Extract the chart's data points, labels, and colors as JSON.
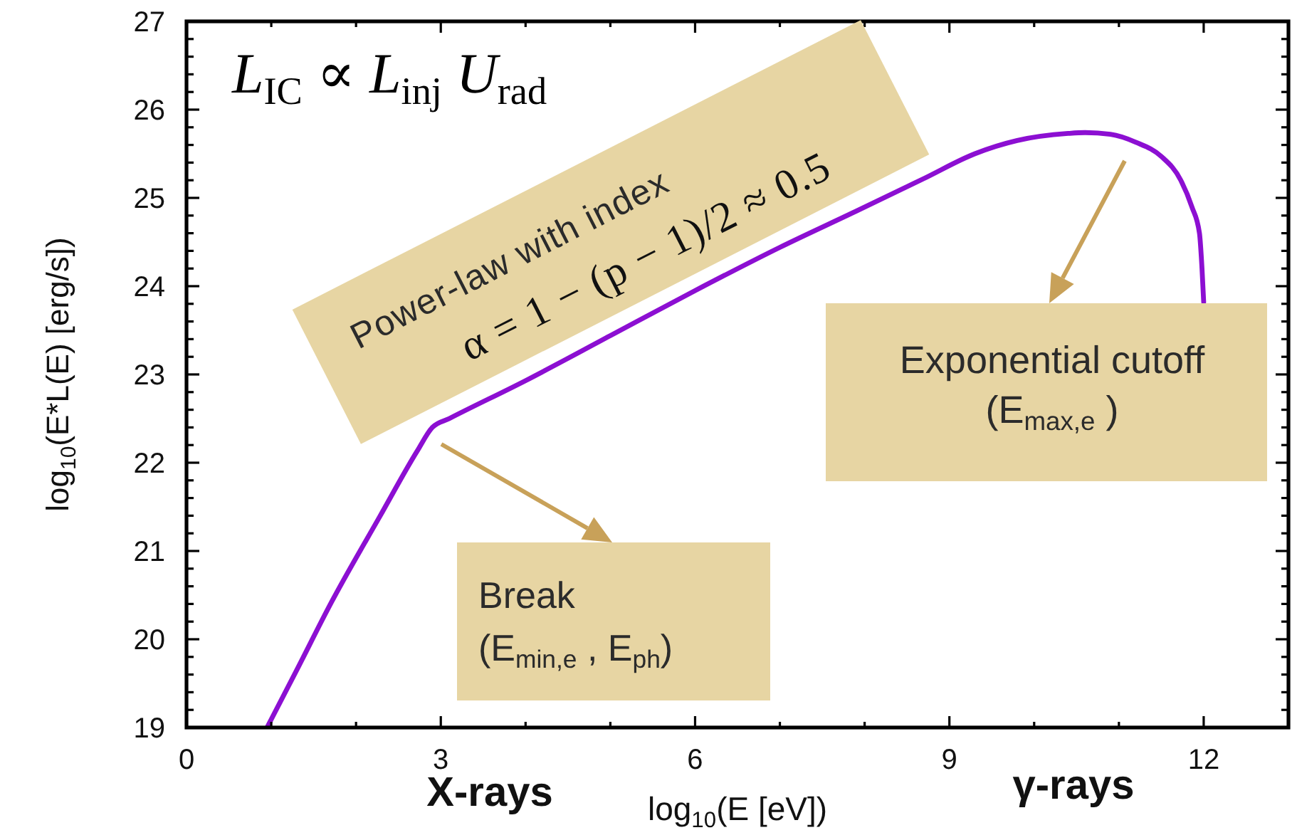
{
  "chart_data": {
    "type": "line",
    "xlabel": "log$_{10}$(E [eV])",
    "ylabel": "log$_{10}$(E*L(E) [erg/s])",
    "x": [
      0.95,
      1.3,
      1.71,
      2.28,
      2.72,
      2.9,
      3.1,
      4,
      5,
      6,
      7,
      7.9,
      8.7,
      9.3,
      9.8,
      10.4,
      10.6,
      10.9,
      11.2,
      11.5,
      11.73,
      11.86,
      11.95,
      11.98,
      12.0
    ],
    "series": [
      {
        "color": "#8c0fd2",
        "values": [
          19.0,
          19.65,
          20.42,
          21.39,
          22.13,
          22.4,
          22.5,
          22.93,
          23.44,
          23.95,
          24.44,
          24.85,
          25.22,
          25.5,
          25.65,
          25.73,
          25.74,
          25.72,
          25.63,
          25.47,
          25.2,
          24.9,
          24.6,
          24.2,
          23.82
        ]
      }
    ],
    "xlim": [
      0,
      13
    ],
    "ylim": [
      19,
      27
    ],
    "xticks": [
      0,
      {
        "value": 1,
        "label": null
      },
      {
        "value": 2,
        "label": null
      },
      3,
      {
        "value": 4,
        "label": null
      },
      {
        "value": 5,
        "label": null
      },
      6,
      {
        "value": 7,
        "label": null
      },
      {
        "value": 8,
        "label": null
      },
      9,
      {
        "value": 10,
        "label": null
      },
      {
        "value": 11,
        "label": null
      },
      12
    ],
    "yticks": [
      19,
      {
        "value": 19.2,
        "label": null
      },
      {
        "value": 19.4,
        "label": null
      },
      {
        "value": 19.6,
        "label": null
      },
      {
        "value": 19.8,
        "label": null
      },
      20,
      {
        "value": 20.2,
        "label": null
      },
      {
        "value": 20.4,
        "label": null
      },
      {
        "value": 20.6,
        "label": null
      },
      {
        "value": 20.8,
        "label": null
      },
      21,
      {
        "value": 21.2,
        "label": null
      },
      {
        "value": 21.4,
        "label": null
      },
      {
        "value": 21.6,
        "label": null
      },
      {
        "value": 21.8,
        "label": null
      },
      22,
      {
        "value": 22.2,
        "label": null
      },
      {
        "value": 22.4,
        "label": null
      },
      {
        "value": 22.6,
        "label": null
      },
      {
        "value": 22.8,
        "label": null
      },
      23,
      {
        "value": 23.2,
        "label": null
      },
      {
        "value": 23.4,
        "label": null
      },
      {
        "value": 23.6,
        "label": null
      },
      {
        "value": 23.8,
        "label": null
      },
      24,
      {
        "value": 24.2,
        "label": null
      },
      {
        "value": 24.4,
        "label": null
      },
      {
        "value": 24.6,
        "label": null
      },
      {
        "value": 24.8,
        "label": null
      },
      25,
      {
        "value": 25.2,
        "label": null
      },
      {
        "value": 25.4,
        "label": null
      },
      {
        "value": 25.6,
        "label": null
      },
      {
        "value": 25.8,
        "label": null
      },
      26,
      {
        "value": 26.2,
        "label": null
      },
      {
        "value": 26.4,
        "label": null
      },
      {
        "value": 26.6,
        "label": null
      },
      {
        "value": 26.8,
        "label": null
      },
      27
    ],
    "annotations": [
      "L$_{IC}$ ∝ L$_{inj}$ U$_{rad}$",
      "Power-law with index\nα = 1 − (p − 1)/2 ≈ 0.5",
      "Break\n(E$_{min,e}$ , E$_{ph}$)",
      "Exponential cutoff\n(E$_{max,e}$ )",
      "X-rays",
      "γ-rays"
    ]
  }
}
